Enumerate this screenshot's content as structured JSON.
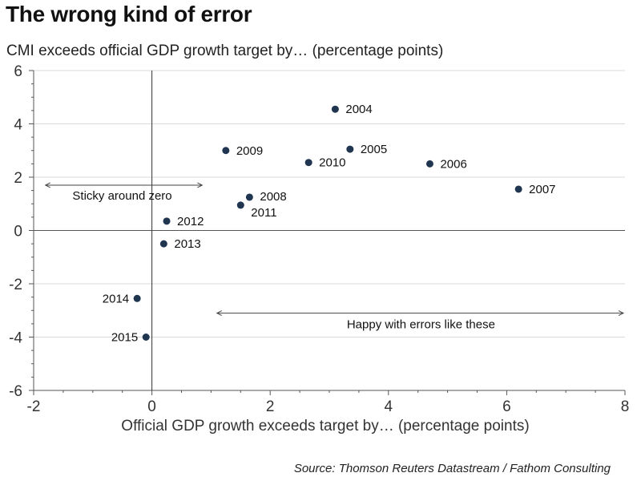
{
  "title": "The wrong kind of error",
  "subtitle": "CMI exceeds official GDP growth target by… (percentage points)",
  "source": "Source: Thomson Reuters Datastream / Fathom Consulting",
  "chart_data": {
    "type": "scatter",
    "xlabel": "Official GDP growth exceeds target by… (percentage points)",
    "ylabel": "",
    "xlim": [
      -2,
      8
    ],
    "ylim": [
      -6,
      6
    ],
    "xticks": [
      -2,
      0,
      2,
      4,
      6,
      8
    ],
    "yticks": [
      -6,
      -4,
      -2,
      0,
      2,
      4,
      6
    ],
    "grid": "horizontal",
    "marker_color": "#1f3550",
    "points": [
      {
        "label": "2004",
        "x": 3.1,
        "y": 4.55
      },
      {
        "label": "2005",
        "x": 3.35,
        "y": 3.05
      },
      {
        "label": "2006",
        "x": 4.7,
        "y": 2.5
      },
      {
        "label": "2007",
        "x": 6.2,
        "y": 1.55
      },
      {
        "label": "2008",
        "x": 1.65,
        "y": 1.25
      },
      {
        "label": "2009",
        "x": 1.25,
        "y": 3.0
      },
      {
        "label": "2010",
        "x": 2.65,
        "y": 2.55
      },
      {
        "label": "2011",
        "x": 1.5,
        "y": 0.95
      },
      {
        "label": "2012",
        "x": 0.25,
        "y": 0.35
      },
      {
        "label": "2013",
        "x": 0.2,
        "y": -0.5
      },
      {
        "label": "2014",
        "x": -0.25,
        "y": -2.55
      },
      {
        "label": "2015",
        "x": -0.1,
        "y": -4.0
      }
    ],
    "annotations": [
      {
        "text": "Sticky around zero",
        "x_from": -1.8,
        "x_to": 0.85,
        "y": 1.7
      },
      {
        "text": "Happy with errors like these",
        "x_from": 1.1,
        "x_to": 8.0,
        "y": -3.1
      }
    ]
  }
}
